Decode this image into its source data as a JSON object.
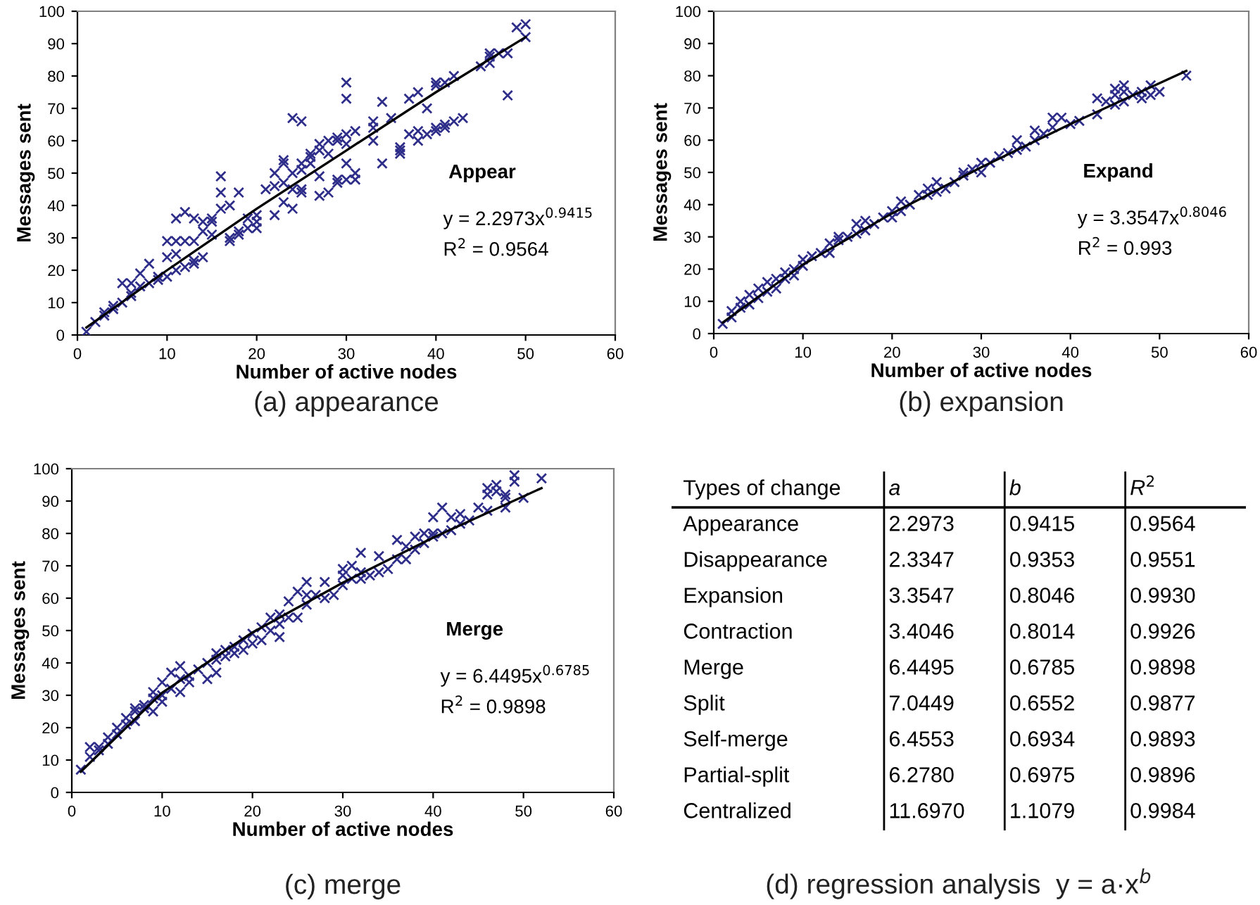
{
  "chart_data": [
    {
      "type": "scatter",
      "title": "(a) appearance",
      "xlabel": "Number of active nodes",
      "ylabel": "Messages sent",
      "xlim": [
        0,
        60
      ],
      "ylim": [
        0,
        100
      ],
      "xticks": [
        0,
        10,
        20,
        30,
        40,
        50,
        60
      ],
      "yticks": [
        0,
        10,
        20,
        30,
        40,
        50,
        60,
        70,
        80,
        90,
        100
      ],
      "marker": "cross",
      "annotations": [
        "Appear",
        "y = 2.2973x$^{0.9415}$",
        "R$^{2}$ = 0.9564"
      ],
      "series": [
        {
          "type": "scatter",
          "color": "#2e2e8a",
          "x": [
            1,
            2,
            3,
            3,
            4,
            4,
            5,
            5,
            6,
            6,
            6,
            7,
            7,
            8,
            8,
            9,
            9,
            10,
            10,
            10,
            11,
            11,
            11,
            11,
            12,
            12,
            12,
            13,
            13,
            13,
            13,
            14,
            14,
            14,
            15,
            15,
            15,
            16,
            16,
            16,
            17,
            17,
            17,
            18,
            18,
            18,
            19,
            19,
            20,
            20,
            20,
            21,
            22,
            22,
            22,
            23,
            23,
            23,
            23,
            24,
            24,
            24,
            24,
            25,
            25,
            25,
            25,
            25,
            26,
            26,
            26,
            27,
            27,
            27,
            27,
            28,
            28,
            28,
            29,
            29,
            29,
            29,
            30,
            30,
            30,
            30,
            30,
            30,
            31,
            31,
            31,
            33,
            33,
            33,
            34,
            34,
            35,
            36,
            36,
            36,
            37,
            37,
            38,
            38,
            38,
            39,
            39,
            40,
            40,
            40,
            40,
            41,
            41,
            41,
            42,
            42,
            43,
            45,
            46,
            46,
            46,
            47,
            48,
            48,
            49,
            50,
            50
          ],
          "values": [
            1,
            4,
            6,
            7,
            8,
            9,
            10,
            16,
            16,
            12,
            13,
            15,
            19,
            16,
            22,
            17,
            18,
            18,
            24,
            29,
            20,
            29,
            36,
            25,
            21,
            29,
            38,
            22,
            23,
            29,
            36,
            24,
            32,
            35,
            31,
            35,
            36,
            39,
            44,
            49,
            29,
            30,
            40,
            31,
            32,
            44,
            33,
            36,
            33,
            35,
            37,
            45,
            37,
            46,
            50,
            41,
            47,
            53,
            54,
            39,
            45,
            50,
            67,
            44,
            45,
            51,
            53,
            66,
            53,
            55,
            56,
            43,
            49,
            57,
            59,
            44,
            56,
            60,
            47,
            48,
            60,
            61,
            48,
            53,
            59,
            62,
            73,
            78,
            48,
            50,
            63,
            60,
            64,
            66,
            53,
            72,
            67,
            56,
            57,
            58,
            62,
            73,
            60,
            63,
            75,
            62,
            70,
            63,
            64,
            77,
            78,
            64,
            65,
            78,
            66,
            80,
            67,
            83,
            84,
            86,
            87,
            87,
            74,
            87,
            95,
            92,
            96
          ]
        },
        {
          "type": "line",
          "color": "#000000",
          "marker": "none",
          "x": [
            1,
            10,
            20,
            30,
            40,
            50
          ],
          "values": [
            2.3,
            20,
            39,
            57,
            75,
            92
          ]
        }
      ]
    },
    {
      "type": "scatter",
      "title": "(b) expansion",
      "xlabel": "Number of active nodes",
      "ylabel": "Messages sent",
      "xlim": [
        0,
        60
      ],
      "ylim": [
        0,
        100
      ],
      "xticks": [
        0,
        10,
        20,
        30,
        40,
        50,
        60
      ],
      "yticks": [
        0,
        10,
        20,
        30,
        40,
        50,
        60,
        70,
        80,
        90,
        100
      ],
      "marker": "cross",
      "annotations": [
        "Expand",
        "y = 3.3547x$^{0.8046}$",
        "R$^{2}$ = 0.993"
      ],
      "series": [
        {
          "type": "scatter",
          "color": "#2e2e8a",
          "x": [
            1,
            2,
            2,
            3,
            3,
            4,
            4,
            5,
            5,
            6,
            6,
            7,
            7,
            8,
            8,
            9,
            9,
            10,
            10,
            11,
            12,
            13,
            13,
            14,
            14,
            15,
            16,
            16,
            17,
            17,
            18,
            19,
            20,
            20,
            21,
            21,
            22,
            23,
            24,
            24,
            25,
            25,
            26,
            27,
            28,
            28,
            29,
            30,
            30,
            31,
            32,
            33,
            34,
            34,
            35,
            36,
            36,
            37,
            38,
            38,
            39,
            40,
            41,
            43,
            43,
            44,
            45,
            45,
            45,
            46,
            46,
            46,
            47,
            48,
            48,
            49,
            49,
            50,
            53
          ],
          "values": [
            3,
            5,
            7,
            8,
            10,
            9,
            12,
            11,
            14,
            13,
            16,
            14,
            17,
            17,
            19,
            18,
            20,
            21,
            23,
            24,
            25,
            25,
            28,
            29,
            30,
            30,
            31,
            34,
            32,
            35,
            34,
            36,
            36,
            38,
            38,
            41,
            40,
            43,
            43,
            45,
            44,
            47,
            45,
            47,
            49,
            50,
            51,
            50,
            53,
            53,
            55,
            56,
            57,
            60,
            58,
            60,
            63,
            62,
            64,
            67,
            67,
            65,
            66,
            68,
            73,
            72,
            71,
            74,
            76,
            72,
            75,
            77,
            74,
            73,
            75,
            74,
            77,
            75,
            80
          ]
        },
        {
          "type": "line",
          "color": "#000000",
          "marker": "none",
          "x": [
            1,
            10,
            20,
            30,
            40,
            53
          ],
          "values": [
            3.4,
            21.4,
            37.3,
            51.6,
            65,
            81.5
          ]
        }
      ]
    },
    {
      "type": "scatter",
      "title": "(c) merge",
      "xlabel": "Number of active nodes",
      "ylabel": "Messages sent",
      "xlim": [
        0,
        60
      ],
      "ylim": [
        0,
        100
      ],
      "xticks": [
        0,
        10,
        20,
        30,
        40,
        50,
        60
      ],
      "yticks": [
        0,
        10,
        20,
        30,
        40,
        50,
        60,
        70,
        80,
        90,
        100
      ],
      "marker": "cross",
      "annotations": [
        "Merge",
        "y = 6.4495x$^{0.6785}$",
        "R$^{2}$ = 0.9898"
      ],
      "series": [
        {
          "type": "scatter",
          "color": "#2e2e8a",
          "x": [
            1,
            2,
            2,
            3,
            3,
            4,
            4,
            5,
            5,
            6,
            6,
            7,
            7,
            7,
            8,
            8,
            9,
            9,
            9,
            10,
            10,
            10,
            11,
            11,
            12,
            12,
            12,
            13,
            13,
            14,
            15,
            15,
            16,
            16,
            16,
            17,
            17,
            18,
            18,
            19,
            19,
            20,
            20,
            21,
            21,
            22,
            22,
            23,
            23,
            23,
            24,
            24,
            25,
            25,
            26,
            26,
            26,
            27,
            28,
            28,
            29,
            30,
            30,
            30,
            31,
            31,
            32,
            32,
            32,
            33,
            34,
            34,
            35,
            36,
            36,
            37,
            37,
            38,
            38,
            39,
            39,
            40,
            40,
            40,
            41,
            41,
            42,
            42,
            43,
            43,
            44,
            45,
            46,
            46,
            46,
            47,
            47,
            48,
            48,
            48,
            49,
            49,
            50,
            52
          ],
          "values": [
            7,
            11,
            14,
            13,
            14,
            15,
            17,
            18,
            20,
            21,
            23,
            22,
            25,
            26,
            26,
            27,
            25,
            29,
            31,
            28,
            30,
            34,
            32,
            37,
            31,
            35,
            39,
            34,
            36,
            38,
            35,
            40,
            37,
            41,
            43,
            42,
            44,
            43,
            45,
            44,
            47,
            46,
            49,
            47,
            51,
            50,
            54,
            48,
            52,
            55,
            54,
            59,
            54,
            62,
            58,
            61,
            65,
            61,
            60,
            65,
            61,
            64,
            67,
            69,
            66,
            70,
            66,
            68,
            74,
            67,
            68,
            73,
            69,
            72,
            78,
            72,
            76,
            75,
            79,
            77,
            80,
            79,
            80,
            85,
            80,
            88,
            81,
            85,
            83,
            86,
            84,
            88,
            87,
            92,
            94,
            93,
            95,
            88,
            91,
            92,
            96,
            98,
            91,
            97
          ]
        },
        {
          "type": "line",
          "color": "#000000",
          "marker": "none",
          "x": [
            1,
            10,
            20,
            30,
            40,
            52
          ],
          "values": [
            6.4,
            30.8,
            49.4,
            64.8,
            78.7,
            94
          ]
        }
      ]
    },
    {
      "type": "other",
      "title": "(d) regression analysis  y = a·x$^{b}$",
      "ylabel": "Types of change",
      "categories": [
        "Appearance",
        "Disappearance",
        "Expansion",
        "Contraction",
        "Merge",
        "Split",
        "Self-merge",
        "Partial-split",
        "Centralized"
      ],
      "series": [
        {
          "name": "a",
          "values": [
            2.2973,
            2.3347,
            3.3547,
            3.4046,
            6.4495,
            7.0449,
            6.4553,
            6.278,
            11.697
          ],
          "value_labels": [
            "2.2973",
            "2.3347",
            "3.3547",
            "3.4046",
            "6.4495",
            "7.0449",
            "6.4553",
            "6.2780",
            "11.6970"
          ]
        },
        {
          "name": "b",
          "values": [
            0.9415,
            0.9353,
            0.8046,
            0.8014,
            0.6785,
            0.6552,
            0.6934,
            0.6975,
            1.1079
          ],
          "value_labels": [
            "0.9415",
            "0.9353",
            "0.8046",
            "0.8014",
            "0.6785",
            "0.6552",
            "0.6934",
            "0.6975",
            "1.1079"
          ]
        },
        {
          "name": "R$^{2}$",
          "values": [
            0.9564,
            0.9551,
            0.993,
            0.9926,
            0.9898,
            0.9877,
            0.9893,
            0.9896,
            0.9984
          ],
          "value_labels": [
            "0.9564",
            "0.9551",
            "0.9930",
            "0.9926",
            "0.9898",
            "0.9877",
            "0.9893",
            "0.9896",
            "0.9984"
          ]
        }
      ]
    }
  ]
}
